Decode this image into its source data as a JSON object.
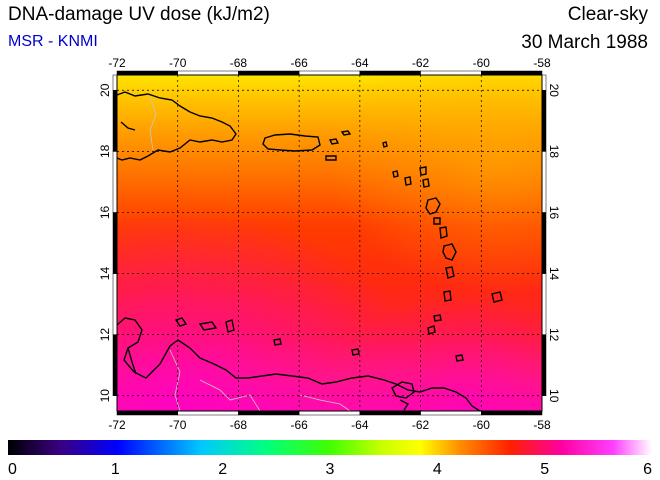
{
  "header": {
    "title": "DNA-damage UV dose (kJ/m2)",
    "subtitle": "MSR - KNMI",
    "condition": "Clear-sky",
    "date": "30 March 1988"
  },
  "map": {
    "lon_range": [
      -72,
      -58
    ],
    "lat_range": [
      9.5,
      20.5
    ],
    "lon_ticks": [
      "-72",
      "-70",
      "-68",
      "-66",
      "-64",
      "-62",
      "-60",
      "-58"
    ],
    "lat_ticks": [
      "10",
      "12",
      "14",
      "16",
      "18",
      "20"
    ]
  },
  "colorbar": {
    "ticks": [
      "0",
      "1",
      "2",
      "3",
      "4",
      "5",
      "6"
    ],
    "min": 0,
    "max": 6,
    "colors": [
      "#000000",
      "#3a0080",
      "#0000ff",
      "#00c8ff",
      "#00ff80",
      "#40ff00",
      "#c8ff00",
      "#ffff00",
      "#ff9000",
      "#ff2000",
      "#ff00a0",
      "#ff40ff",
      "#ffffff"
    ]
  }
}
